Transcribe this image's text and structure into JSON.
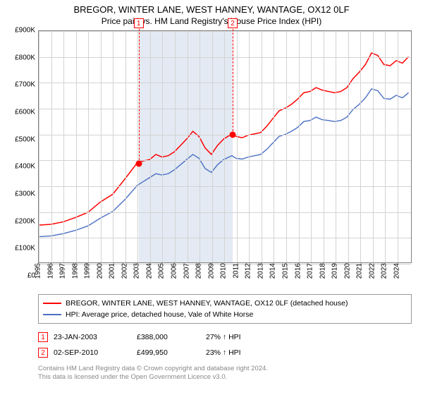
{
  "title_line1": "BREGOR, WINTER LANE, WEST HANNEY, WANTAGE, OX12 0LF",
  "title_line2": "Price paid vs. HM Land Registry's House Price Index (HPI)",
  "chart": {
    "type": "line",
    "background_color": "#ffffff",
    "border_color": "#808080",
    "grid_color": "#d3d3d3",
    "shade_color": "rgba(176,196,222,0.35)",
    "label_fontsize": 10,
    "x_years": [
      1995,
      1996,
      1997,
      1998,
      1999,
      2000,
      2001,
      2002,
      2003,
      2004,
      2005,
      2006,
      2007,
      2008,
      2009,
      2010,
      2011,
      2012,
      2013,
      2014,
      2015,
      2016,
      2017,
      2018,
      2019,
      2020,
      2021,
      2022,
      2023,
      2024
    ],
    "y_ticks": [
      0,
      100,
      200,
      300,
      400,
      500,
      600,
      700,
      800,
      900
    ],
    "y_tick_prefix": "£",
    "y_tick_suffix": "K",
    "ylim": [
      0,
      900
    ],
    "xlim": [
      1995,
      2025.2
    ],
    "shade_ranges": [
      [
        2003.07,
        2010.67
      ]
    ],
    "series": [
      {
        "key": "property",
        "color": "#ff0000",
        "width": 1.5,
        "label": "BREGOR, WINTER LANE, WEST HANNEY, WANTAGE, OX12 0LF (detached house)",
        "data": [
          [
            1995,
            145
          ],
          [
            1996,
            148
          ],
          [
            1997,
            158
          ],
          [
            1998,
            175
          ],
          [
            1999,
            195
          ],
          [
            2000,
            235
          ],
          [
            2001,
            265
          ],
          [
            2002,
            325
          ],
          [
            2003,
            388
          ],
          [
            2003.5,
            395
          ],
          [
            2004,
            400
          ],
          [
            2004.5,
            420
          ],
          [
            2005,
            410
          ],
          [
            2005.5,
            415
          ],
          [
            2006,
            430
          ],
          [
            2006.5,
            455
          ],
          [
            2007,
            480
          ],
          [
            2007.5,
            510
          ],
          [
            2008,
            490
          ],
          [
            2008.5,
            445
          ],
          [
            2009,
            420
          ],
          [
            2009.5,
            455
          ],
          [
            2010,
            480
          ],
          [
            2010.67,
            500
          ],
          [
            2011,
            490
          ],
          [
            2011.5,
            485
          ],
          [
            2012,
            495
          ],
          [
            2013,
            505
          ],
          [
            2013.5,
            530
          ],
          [
            2014,
            560
          ],
          [
            2014.5,
            590
          ],
          [
            2015,
            600
          ],
          [
            2015.5,
            615
          ],
          [
            2016,
            635
          ],
          [
            2016.5,
            660
          ],
          [
            2017,
            665
          ],
          [
            2017.5,
            680
          ],
          [
            2018,
            670
          ],
          [
            2018.5,
            665
          ],
          [
            2019,
            660
          ],
          [
            2019.5,
            665
          ],
          [
            2020,
            680
          ],
          [
            2020.5,
            715
          ],
          [
            2021,
            740
          ],
          [
            2021.5,
            770
          ],
          [
            2022,
            815
          ],
          [
            2022.5,
            805
          ],
          [
            2023,
            770
          ],
          [
            2023.5,
            765
          ],
          [
            2024,
            785
          ],
          [
            2024.5,
            775
          ],
          [
            2025,
            800
          ]
        ]
      },
      {
        "key": "hpi",
        "color": "#4a6fc3",
        "width": 1.4,
        "label": "HPI: Average price, detached house, Vale of White Horse",
        "data": [
          [
            1995,
            100
          ],
          [
            1996,
            103
          ],
          [
            1997,
            112
          ],
          [
            1998,
            125
          ],
          [
            1999,
            142
          ],
          [
            2000,
            172
          ],
          [
            2001,
            198
          ],
          [
            2002,
            245
          ],
          [
            2003,
            300
          ],
          [
            2003.5,
            315
          ],
          [
            2004,
            330
          ],
          [
            2004.5,
            345
          ],
          [
            2005,
            340
          ],
          [
            2005.5,
            345
          ],
          [
            2006,
            360
          ],
          [
            2006.5,
            380
          ],
          [
            2007,
            400
          ],
          [
            2007.5,
            420
          ],
          [
            2008,
            405
          ],
          [
            2008.5,
            365
          ],
          [
            2009,
            350
          ],
          [
            2009.5,
            380
          ],
          [
            2010,
            400
          ],
          [
            2010.67,
            415
          ],
          [
            2011,
            405
          ],
          [
            2011.5,
            402
          ],
          [
            2012,
            410
          ],
          [
            2013,
            420
          ],
          [
            2013.5,
            440
          ],
          [
            2014,
            465
          ],
          [
            2014.5,
            490
          ],
          [
            2015,
            498
          ],
          [
            2015.5,
            510
          ],
          [
            2016,
            525
          ],
          [
            2016.5,
            548
          ],
          [
            2017,
            552
          ],
          [
            2017.5,
            565
          ],
          [
            2018,
            555
          ],
          [
            2018.5,
            552
          ],
          [
            2019,
            548
          ],
          [
            2019.5,
            552
          ],
          [
            2020,
            565
          ],
          [
            2020.5,
            595
          ],
          [
            2021,
            615
          ],
          [
            2021.5,
            640
          ],
          [
            2022,
            675
          ],
          [
            2022.5,
            668
          ],
          [
            2023,
            638
          ],
          [
            2023.5,
            635
          ],
          [
            2024,
            650
          ],
          [
            2024.5,
            640
          ],
          [
            2025,
            660
          ]
        ]
      }
    ],
    "markers": [
      {
        "n": "1",
        "x": 2003.07,
        "y": 388
      },
      {
        "n": "2",
        "x": 2010.67,
        "y": 500
      }
    ]
  },
  "legend": {
    "series": [
      {
        "color": "#ff0000",
        "label": "BREGOR, WINTER LANE, WEST HANNEY, WANTAGE, OX12 0LF (detached house)"
      },
      {
        "color": "#4a6fc3",
        "label": "HPI: Average price, detached house, Vale of White Horse"
      }
    ]
  },
  "transactions": [
    {
      "n": "1",
      "date": "23-JAN-2003",
      "price": "£388,000",
      "delta": "27% ↑ HPI"
    },
    {
      "n": "2",
      "date": "02-SEP-2010",
      "price": "£499,950",
      "delta": "23% ↑ HPI"
    }
  ],
  "footnote_l1": "Contains HM Land Registry data © Crown copyright and database right 2024.",
  "footnote_l2": "This data is licensed under the Open Government Licence v3.0."
}
